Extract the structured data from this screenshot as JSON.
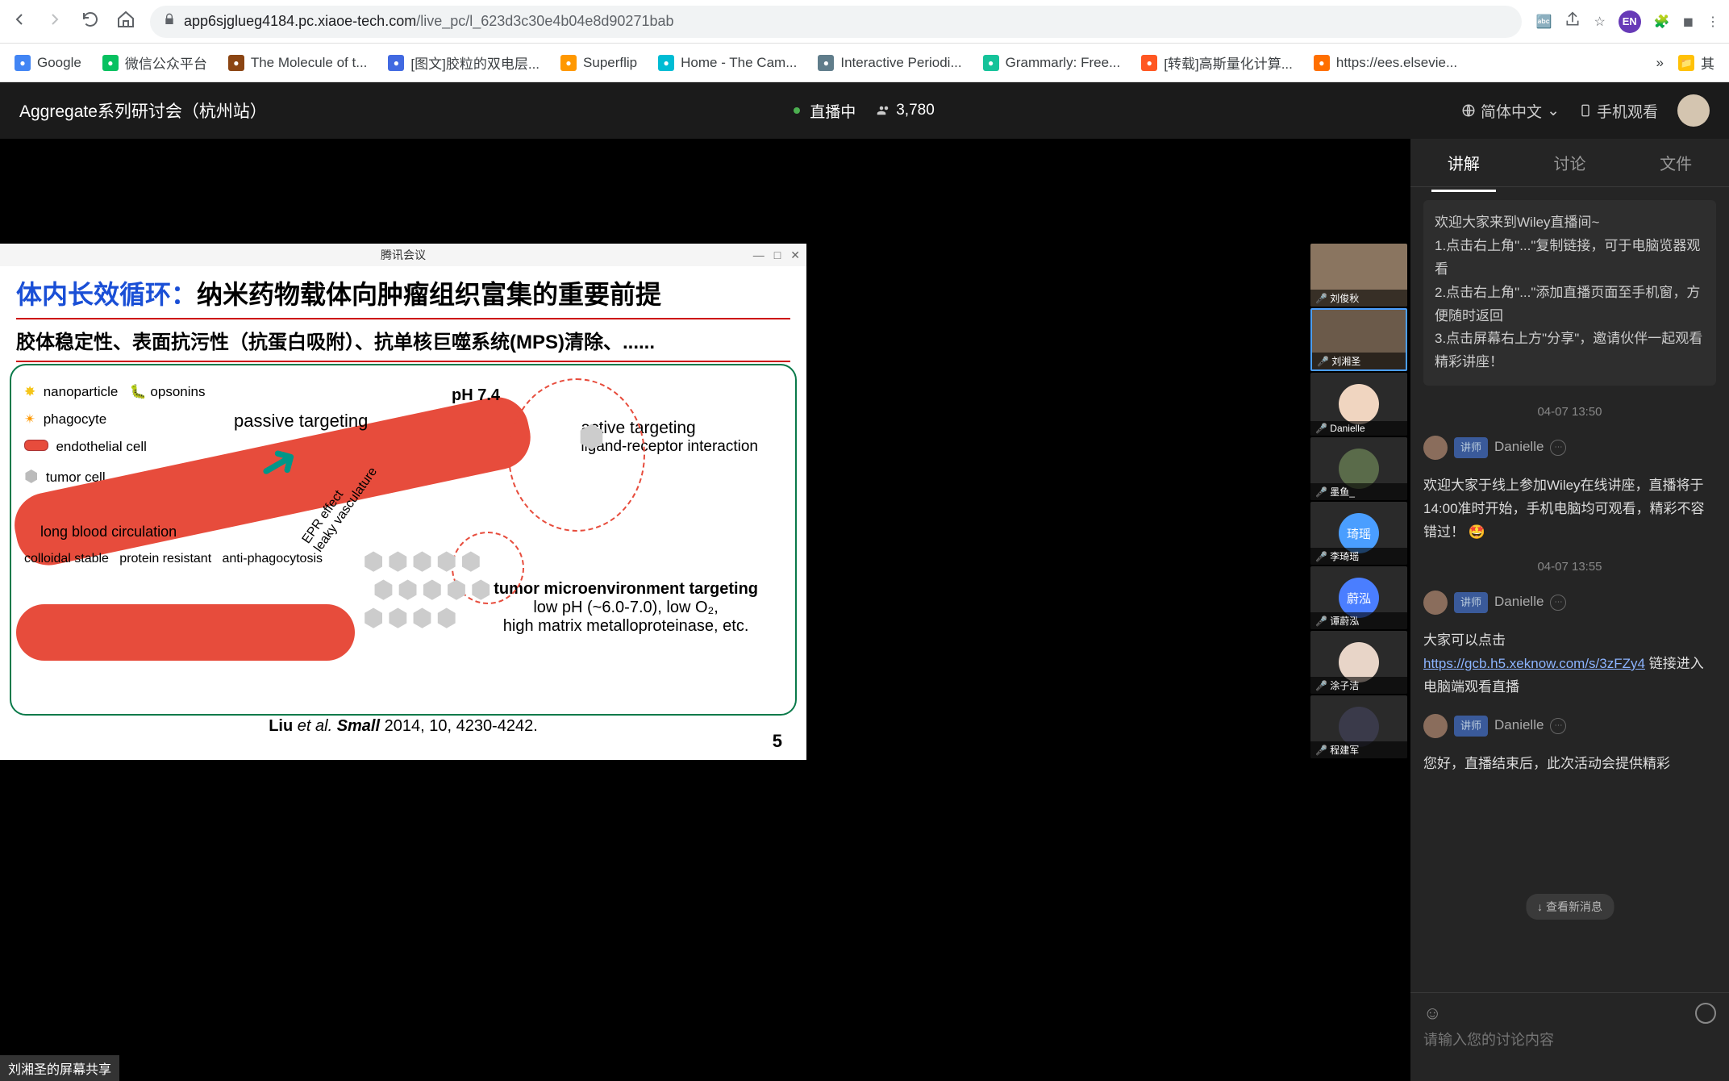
{
  "browser": {
    "url_domain": "app6sjglueg4184.pc.xiaoe-tech.com",
    "url_path": "/live_pc/l_623d3c30e4b04e8d90271bab",
    "bookmarks": [
      {
        "label": "Google",
        "color": "#4285f4"
      },
      {
        "label": "微信公众平台",
        "color": "#07c160"
      },
      {
        "label": "The Molecule of t...",
        "color": "#8b4513"
      },
      {
        "label": "[图文]胶粒的双电层...",
        "color": "#4169e1"
      },
      {
        "label": "Superflip",
        "color": "#ff9800"
      },
      {
        "label": "Home - The Cam...",
        "color": "#00bcd4"
      },
      {
        "label": "Interactive Periodi...",
        "color": "#607d8b"
      },
      {
        "label": "Grammarly: Free...",
        "color": "#15c39a"
      },
      {
        "label": "[转载]高斯量化计算...",
        "color": "#ff5722"
      },
      {
        "label": "https://ees.elsevie...",
        "color": "#ff6f00"
      }
    ],
    "overflow": "»",
    "other_bookmark": "其"
  },
  "header": {
    "title": "Aggregate系列研讨会（杭州站）",
    "live_label": "直播中",
    "viewers": "3,780",
    "lang": "简体中文",
    "mobile": "手机观看"
  },
  "slide": {
    "window_title": "腾讯会议",
    "heading_blue": "体内长效循环：",
    "heading_black": "纳米药物载体向肿瘤组织富集的重要前提",
    "subtitle": "胶体稳定性、表面抗污性（抗蛋白吸附）、抗单核巨噬系统(MPS)清除、......",
    "legend": {
      "nanoparticle": "nanoparticle",
      "opsonins": "opsonins",
      "phagocyte": "phagocyte",
      "endothelial": "endothelial cell",
      "tumor": "tumor cell"
    },
    "labels": {
      "passive": "passive targeting",
      "ph": "pH 7.4",
      "active_title": "active targeting",
      "active_sub": "ligand-receptor interaction",
      "long_circ": "long blood circulation",
      "colloidal": "colloidal stable",
      "protein": "protein resistant",
      "anti_phago": "anti-phagocytosis",
      "epr": "EPR effect",
      "leaky": "leaky vasculature",
      "tme_title": "tumor microenvironment targeting",
      "tme_sub1": "low pH (~6.0-7.0), low O₂,",
      "tme_sub2": "high matrix metalloproteinase, etc."
    },
    "citation": "Liu et al. Small 2014, 10, 4230-4242.",
    "page_num": "5",
    "share_label": "刘湘圣的屏幕共享"
  },
  "participants": [
    {
      "name": "刘俊秋",
      "type": "video",
      "bg": "#8a7560"
    },
    {
      "name": "刘湘圣",
      "type": "video",
      "bg": "#6b5a4a",
      "active": true
    },
    {
      "name": "Danielle",
      "type": "avatar",
      "bg": "#f0d5c0"
    },
    {
      "name": "墨鱼_",
      "type": "avatar",
      "bg": "#5a6b4a"
    },
    {
      "name": "李琦瑶",
      "type": "avatar",
      "bg": "#4a9eff",
      "text": "琦瑶"
    },
    {
      "name": "谭蔚泓",
      "type": "avatar",
      "bg": "#4a7eff",
      "text": "蔚泓"
    },
    {
      "name": "涂子洁",
      "type": "avatar",
      "bg": "#e8d5c8"
    },
    {
      "name": "程建军",
      "type": "avatar",
      "bg": "#3a3a4a"
    }
  ],
  "chat": {
    "tabs": [
      "讲解",
      "讨论",
      "文件"
    ],
    "notice": "欢迎大家来到Wiley直播间~\n1.点击右上角\"...\"复制链接，可于电脑览器观看\n2.点击右上角\"...\"添加直播页面至手机窗，方便随时返回\n3.点击屏幕右上方\"分享\"，邀请伙伴一起观看精彩讲座！",
    "time1": "04-07 13:50",
    "user_badge": "讲师",
    "username": "Danielle",
    "msg1": "欢迎大家于线上参加Wiley在线讲座，直播将于14:00准时开始，手机电脑均可观看，精彩不容错过！ 🤩",
    "time2": "04-07 13:55",
    "msg2_pre": "大家可以点击 ",
    "msg2_link": "https://gcb.h5.xeknow.com/s/3zFZy4",
    "msg2_post": " 链接进入电脑端观看直播",
    "msg3": "您好，直播结束后，此次活动会提供精彩",
    "new_msg": "查看新消息",
    "placeholder": "请输入您的讨论内容"
  }
}
